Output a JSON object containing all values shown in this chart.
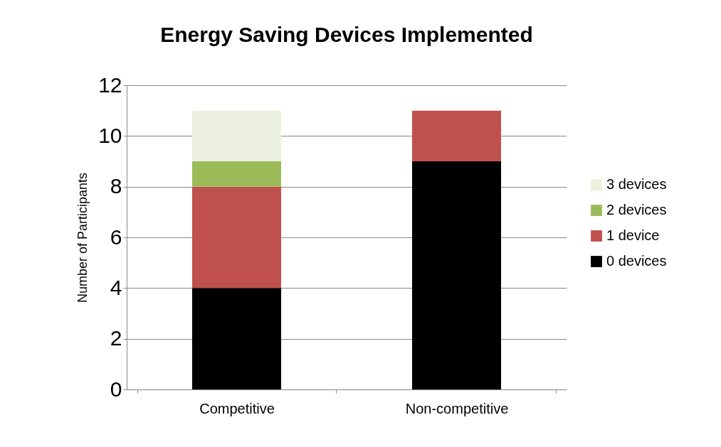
{
  "chart_data": {
    "type": "bar",
    "title": "Energy Saving Devices Implemented",
    "ylabel": "Number of Participants",
    "categories": [
      "Competitive",
      "Non-competitive"
    ],
    "stacked": true,
    "series": [
      {
        "name": "0 devices",
        "color": "#000000",
        "values": [
          4,
          9
        ]
      },
      {
        "name": "1 device",
        "color": "#c0504d",
        "values": [
          4,
          2
        ]
      },
      {
        "name": "2 devices",
        "color": "#9bbb59",
        "values": [
          1,
          0
        ]
      },
      {
        "name": "3 devices",
        "color": "#ebf1de",
        "values": [
          2,
          0
        ]
      }
    ],
    "ylim": [
      0,
      12
    ],
    "yticks": [
      0,
      2,
      4,
      6,
      8,
      10,
      12
    ],
    "grid": "y",
    "legend": "right"
  }
}
